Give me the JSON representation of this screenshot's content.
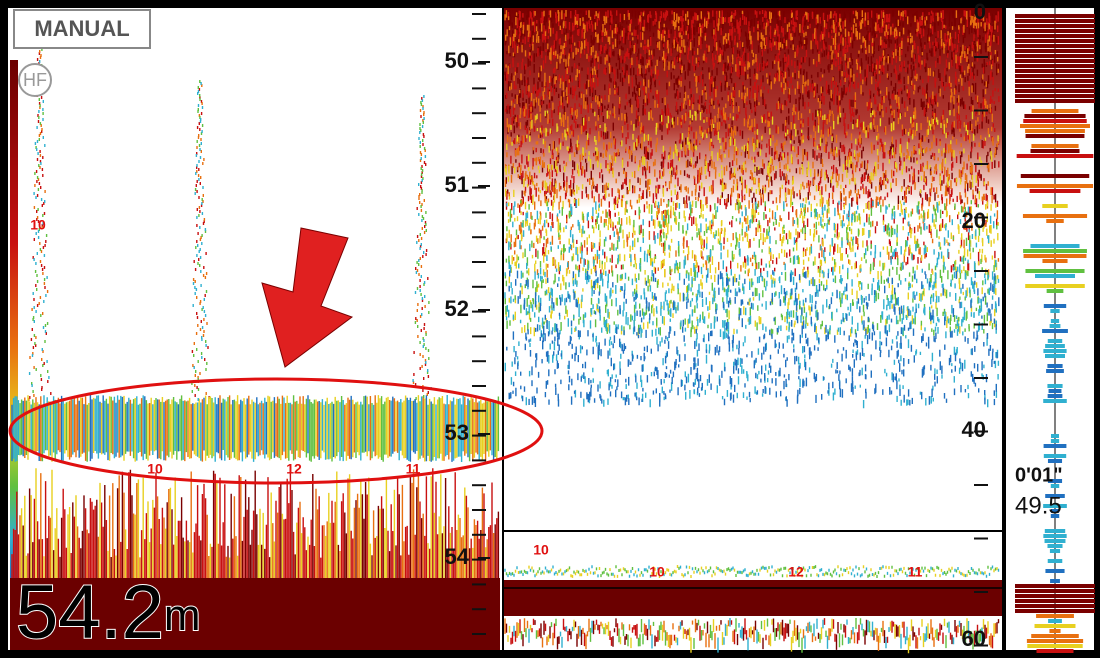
{
  "mode": "MANUAL",
  "frequency": "HF",
  "left_scale": {
    "labels": [
      "50",
      "51",
      "52",
      "53",
      "54"
    ]
  },
  "left_markers": [
    "10",
    "10",
    "12",
    "11"
  ],
  "depth": {
    "value": "54.2",
    "unit": "m"
  },
  "zoom_scale": {
    "labels": [
      "0",
      "20",
      "40",
      "60"
    ]
  },
  "zoom_markers": [
    "10",
    "10",
    "12",
    "11"
  ],
  "ascope": {
    "time": "0'01\"",
    "value": "49.5"
  }
}
